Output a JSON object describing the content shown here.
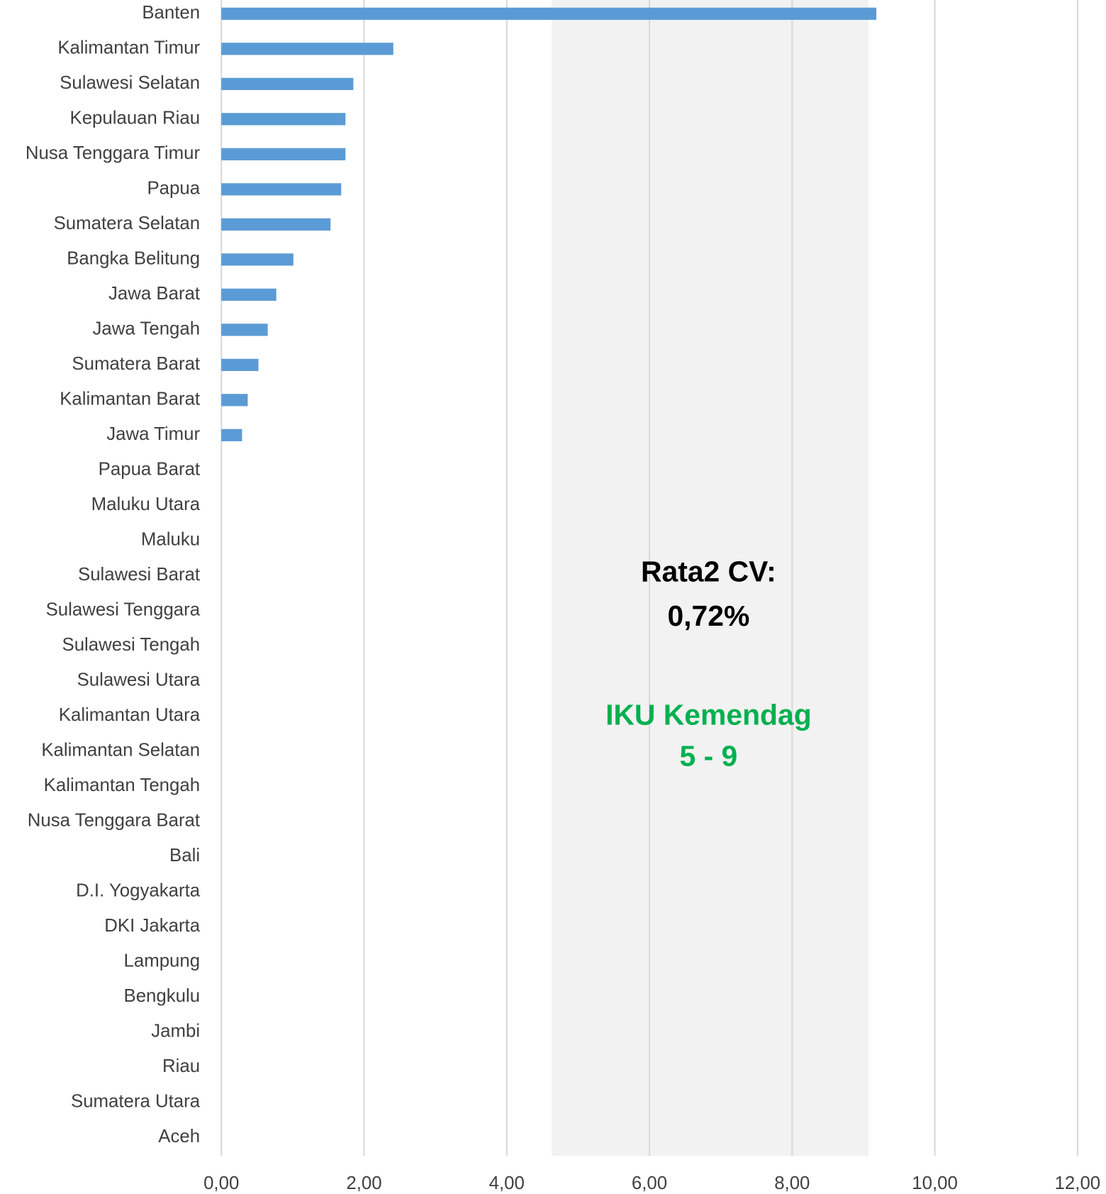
{
  "chart_data": {
    "type": "bar",
    "orientation": "horizontal",
    "categories": [
      "Banten",
      "Kalimantan Timur",
      "Sulawesi Selatan",
      "Kepulauan Riau",
      "Nusa Tenggara Timur",
      "Papua",
      "Sumatera Selatan",
      "Bangka Belitung",
      "Jawa Barat",
      "Jawa Tengah",
      "Sumatera Barat",
      "Kalimantan Barat",
      "Jawa Timur",
      "Papua Barat",
      "Maluku Utara",
      "Maluku",
      "Sulawesi Barat",
      "Sulawesi Tenggara",
      "Sulawesi Tengah",
      "Sulawesi Utara",
      "Kalimantan Utara",
      "Kalimantan Selatan",
      "Kalimantan Tengah",
      "Nusa Tenggara Barat",
      "Bali",
      "D.I. Yogyakarta",
      "DKI Jakarta",
      "Lampung",
      "Bengkulu",
      "Jambi",
      "Riau",
      "Sumatera Utara",
      "Aceh"
    ],
    "values": [
      9.18,
      2.41,
      1.85,
      1.74,
      1.74,
      1.68,
      1.53,
      1.01,
      0.77,
      0.65,
      0.52,
      0.37,
      0.29,
      0,
      0,
      0,
      0,
      0,
      0,
      0,
      0,
      0,
      0,
      0,
      0,
      0,
      0,
      0,
      0,
      0,
      0,
      0,
      0
    ],
    "color": "#5b9bd5",
    "xlim": [
      0,
      12
    ],
    "xticks": [
      {
        "value": 0,
        "label": "0,00"
      },
      {
        "value": 2,
        "label": "2,00"
      },
      {
        "value": 4,
        "label": "4,00"
      },
      {
        "value": 6,
        "label": "6,00"
      },
      {
        "value": 8,
        "label": "8,00"
      },
      {
        "value": 10,
        "label": "10,00"
      },
      {
        "value": 12,
        "label": "12,00"
      }
    ],
    "grid": true,
    "band": {
      "range": [
        4.63,
        9.07
      ],
      "color": "#f2f2f2"
    },
    "annotations": [
      {
        "lines": [
          "Rata2 CV:",
          "0,72%"
        ],
        "color": "#000000"
      },
      {
        "lines": [
          "IKU Kemendag",
          "5 - 9"
        ],
        "color": "#00b050"
      }
    ]
  }
}
